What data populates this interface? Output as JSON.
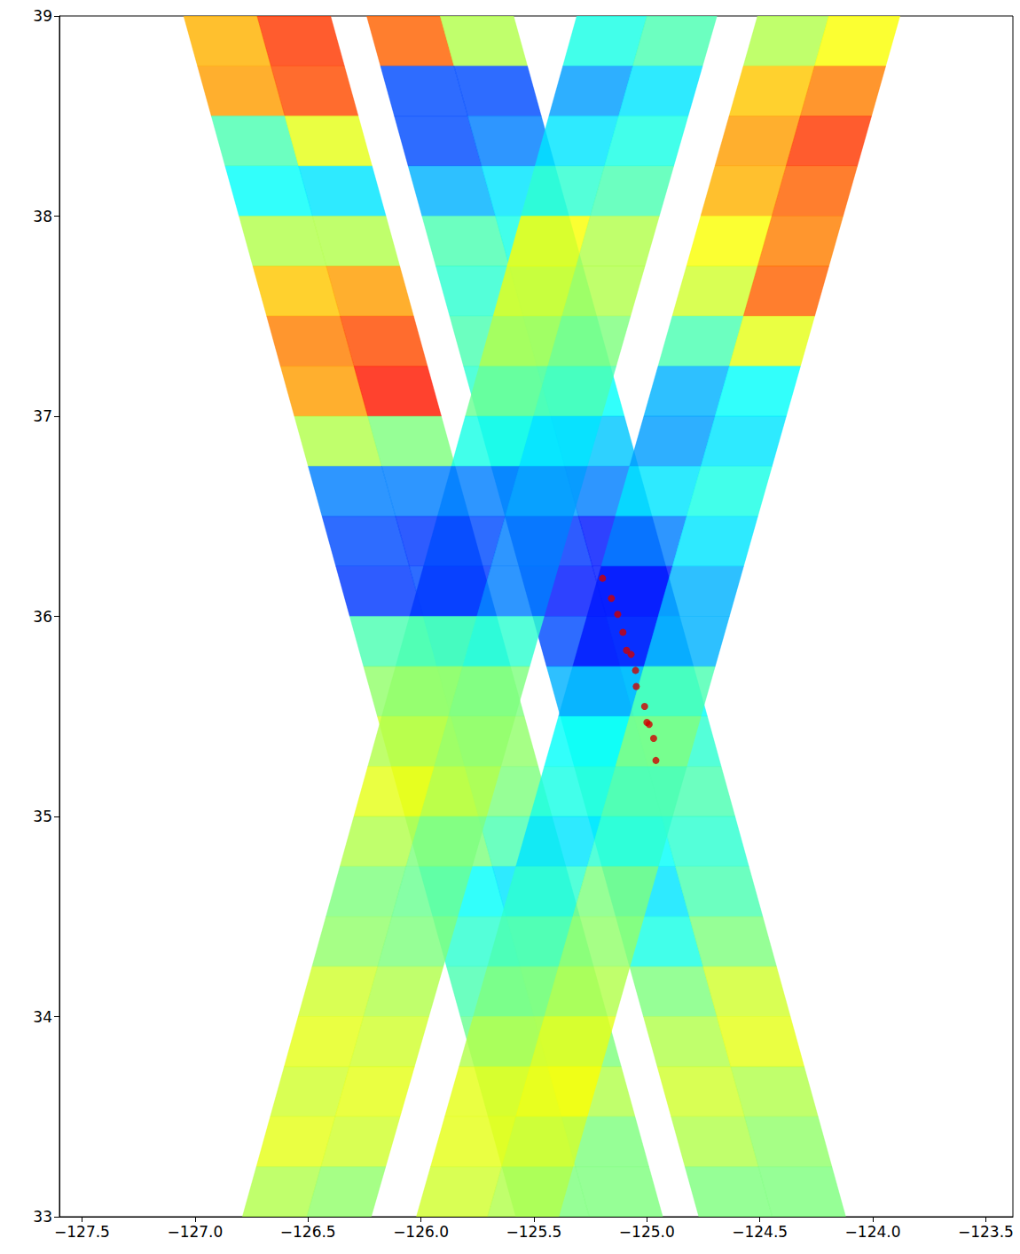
{
  "chart_data": {
    "type": "swath",
    "xlim": [
      -127.6,
      -123.38
    ],
    "xticks": [
      {
        "value": -127.5,
        "label": "−127.5"
      },
      {
        "value": -127.0,
        "label": "−127.0"
      },
      {
        "value": -126.5,
        "label": "−126.5"
      },
      {
        "value": -126.0,
        "label": "−126.0"
      },
      {
        "value": -125.5,
        "label": "−125.5"
      },
      {
        "value": -125.0,
        "label": "−125.0"
      },
      {
        "value": -124.5,
        "label": "−124.5"
      },
      {
        "value": -124.0,
        "label": "−124.0"
      },
      {
        "value": -123.5,
        "label": "−123.5"
      }
    ],
    "ylim": [
      33,
      39
    ],
    "yticks": [
      33,
      34,
      35,
      36,
      37,
      38,
      39
    ],
    "grid": false,
    "color_range": [
      0,
      1
    ],
    "lat_edges": [
      39,
      38.75,
      38.5,
      38.25,
      38,
      37.75,
      37.5,
      37.25,
      37,
      36.75,
      36.5,
      36.25,
      36,
      35.75,
      35.5,
      35.25,
      35,
      34.75,
      34.5,
      34.25,
      34,
      33.75,
      33.5,
      33.25,
      33
    ],
    "swaths": [
      {
        "lon_north": [
          -127.05,
          -126.4
        ],
        "lon_south": [
          -125.58,
          -124.93
        ],
        "values": [
          [
            0.7,
            0.82
          ],
          [
            0.72,
            0.8
          ],
          [
            0.45,
            0.6
          ],
          [
            0.38,
            0.35
          ],
          [
            0.55,
            0.55
          ],
          [
            0.68,
            0.72
          ],
          [
            0.75,
            0.8
          ],
          [
            0.72,
            0.85
          ],
          [
            0.55,
            0.5
          ],
          [
            0.25,
            0.25
          ],
          [
            0.2,
            0.18
          ],
          [
            0.18,
            0.2
          ],
          [
            0.45,
            0.35
          ],
          [
            0.52,
            0.5
          ],
          [
            0.58,
            0.52
          ],
          [
            0.6,
            0.5
          ],
          [
            0.5,
            0.45
          ],
          [
            0.38,
            0.35
          ],
          [
            0.42,
            0.45
          ],
          [
            0.45,
            0.48
          ],
          [
            0.48,
            0.5
          ],
          [
            0.5,
            0.55
          ],
          [
            0.55,
            0.5
          ],
          [
            0.5,
            0.5
          ]
        ]
      },
      {
        "lon_north": [
          -126.24,
          -125.59
        ],
        "lon_south": [
          -124.77,
          -124.12
        ],
        "values": [
          [
            0.78,
            0.55
          ],
          [
            0.2,
            0.2
          ],
          [
            0.2,
            0.25
          ],
          [
            0.3,
            0.35
          ],
          [
            0.45,
            0.4
          ],
          [
            0.42,
            0.4
          ],
          [
            0.45,
            0.42
          ],
          [
            0.42,
            0.38
          ],
          [
            0.35,
            0.32
          ],
          [
            0.28,
            0.25
          ],
          [
            0.18,
            0.15
          ],
          [
            0.15,
            0.15
          ],
          [
            0.2,
            0.25
          ],
          [
            0.3,
            0.38
          ],
          [
            0.4,
            0.42
          ],
          [
            0.45,
            0.45
          ],
          [
            0.38,
            0.42
          ],
          [
            0.35,
            0.45
          ],
          [
            0.4,
            0.5
          ],
          [
            0.5,
            0.58
          ],
          [
            0.55,
            0.6
          ],
          [
            0.58,
            0.55
          ],
          [
            0.55,
            0.52
          ],
          [
            0.5,
            0.5
          ]
        ]
      },
      {
        "lon_north": [
          -125.31,
          -124.69
        ],
        "lon_south": [
          -126.79,
          -126.22
        ],
        "values": [
          [
            0.4,
            0.45
          ],
          [
            0.28,
            0.35
          ],
          [
            0.35,
            0.4
          ],
          [
            0.42,
            0.45
          ],
          [
            0.62,
            0.55
          ],
          [
            0.6,
            0.55
          ],
          [
            0.55,
            0.5
          ],
          [
            0.48,
            0.45
          ],
          [
            0.4,
            0.35
          ],
          [
            0.25,
            0.28
          ],
          [
            0.2,
            0.25
          ],
          [
            0.18,
            0.25
          ],
          [
            0.45,
            0.42
          ],
          [
            0.52,
            0.5
          ],
          [
            0.55,
            0.52
          ],
          [
            0.6,
            0.55
          ],
          [
            0.55,
            0.5
          ],
          [
            0.5,
            0.48
          ],
          [
            0.52,
            0.5
          ],
          [
            0.58,
            0.55
          ],
          [
            0.6,
            0.58
          ],
          [
            0.58,
            0.6
          ],
          [
            0.6,
            0.58
          ],
          [
            0.55,
            0.52
          ]
        ]
      },
      {
        "lon_north": [
          -124.51,
          -123.88
        ],
        "lon_south": [
          -126.02,
          -125.39
        ],
        "values": [
          [
            0.55,
            0.62
          ],
          [
            0.68,
            0.75
          ],
          [
            0.72,
            0.82
          ],
          [
            0.7,
            0.78
          ],
          [
            0.62,
            0.75
          ],
          [
            0.58,
            0.78
          ],
          [
            0.45,
            0.6
          ],
          [
            0.3,
            0.38
          ],
          [
            0.28,
            0.35
          ],
          [
            0.35,
            0.4
          ],
          [
            0.25,
            0.35
          ],
          [
            0.15,
            0.3
          ],
          [
            0.15,
            0.3
          ],
          [
            0.3,
            0.45
          ],
          [
            0.38,
            0.5
          ],
          [
            0.4,
            0.45
          ],
          [
            0.35,
            0.42
          ],
          [
            0.42,
            0.5
          ],
          [
            0.45,
            0.52
          ],
          [
            0.5,
            0.55
          ],
          [
            0.55,
            0.6
          ],
          [
            0.6,
            0.62
          ],
          [
            0.6,
            0.58
          ],
          [
            0.58,
            0.55
          ]
        ]
      }
    ],
    "track": {
      "type": "scatter",
      "color": "#d00000",
      "marker": "circle",
      "lon": [
        -125.196,
        -125.157,
        -125.129,
        -125.106,
        -125.09,
        -125.07,
        -125.05,
        -125.047,
        -125.01,
        -125.0,
        -124.99,
        -124.97,
        -124.96
      ],
      "lat": [
        36.19,
        36.09,
        36.01,
        35.92,
        35.83,
        35.81,
        35.73,
        35.65,
        35.55,
        35.47,
        35.46,
        35.39,
        35.28
      ]
    }
  }
}
